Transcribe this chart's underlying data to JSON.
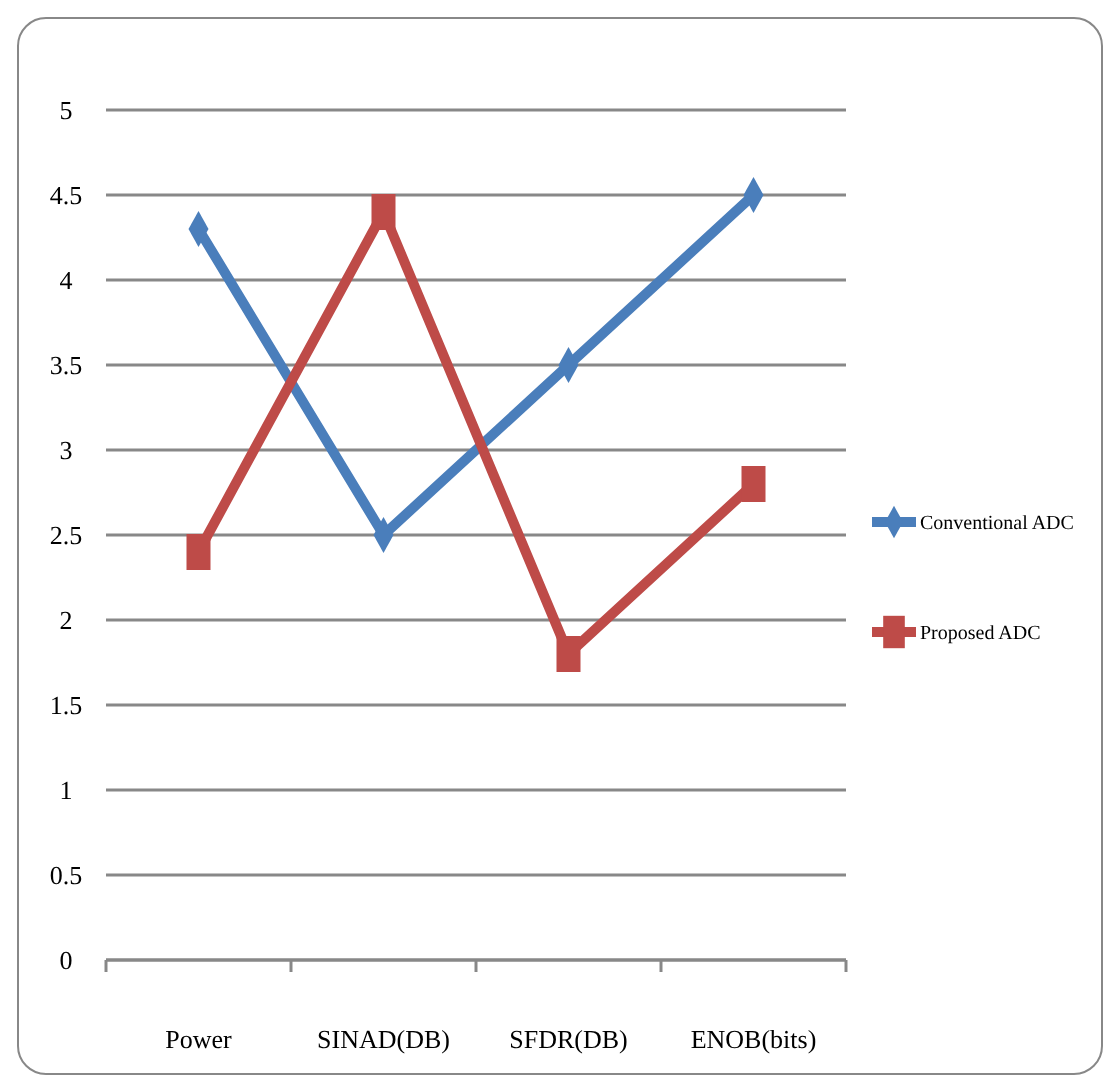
{
  "chart_data": {
    "type": "line",
    "categories": [
      "Power",
      "SINAD(DB)",
      "SFDR(DB)",
      "ENOB(bits)"
    ],
    "series": [
      {
        "name": "Conventional ADC",
        "color": "#4a7ebb",
        "values": [
          4.3,
          2.5,
          3.5,
          4.5
        ],
        "marker": "diamond"
      },
      {
        "name": "Proposed ADC",
        "color": "#be4b48",
        "values": [
          2.4,
          4.4,
          1.8,
          2.8
        ],
        "marker": "square"
      }
    ],
    "ylim": [
      0,
      5
    ],
    "yticks": [
      0,
      0.5,
      1,
      1.5,
      2,
      2.5,
      3,
      3.5,
      4,
      4.5,
      5
    ],
    "grid": "y",
    "legend": "right"
  }
}
